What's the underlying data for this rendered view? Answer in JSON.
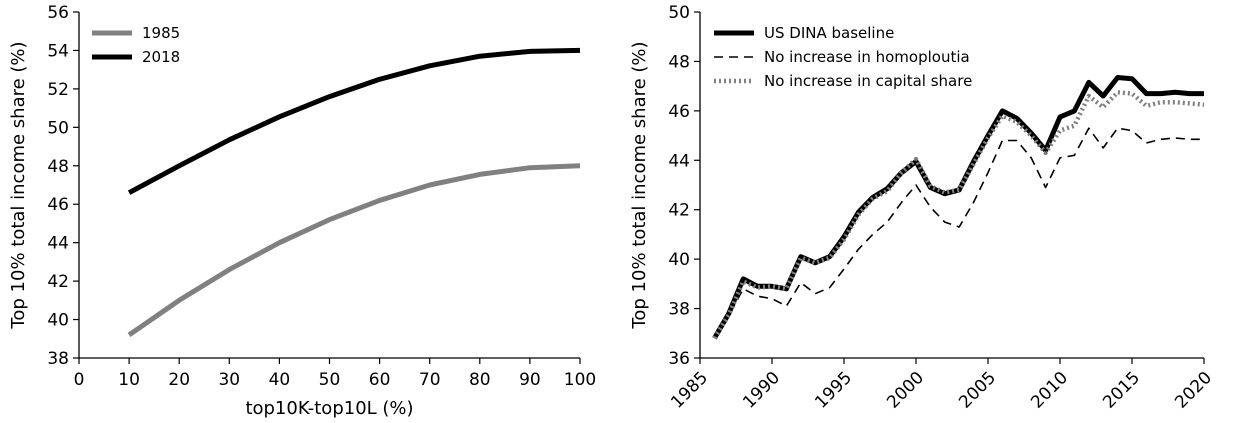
{
  "chart_data": [
    {
      "type": "line",
      "title": "",
      "xlabel": "top10K-top10L (%)",
      "ylabel": "Top 10% total income share (%)",
      "xlim": [
        0,
        100
      ],
      "ylim": [
        38,
        56
      ],
      "xticks": [
        "0",
        "10",
        "20",
        "30",
        "40",
        "50",
        "60",
        "70",
        "80",
        "90",
        "100"
      ],
      "yticks": [
        "38",
        "40",
        "42",
        "44",
        "46",
        "48",
        "50",
        "52",
        "54",
        "56"
      ],
      "legend_position": "top-left",
      "grid": false,
      "x": [
        10,
        20,
        30,
        40,
        50,
        60,
        70,
        80,
        90,
        100
      ],
      "series": [
        {
          "name": "1985",
          "color": "#808080",
          "style": "solid-thick",
          "values": [
            39.2,
            41.0,
            42.6,
            44.0,
            45.2,
            46.2,
            47.0,
            47.55,
            47.9,
            48.0
          ]
        },
        {
          "name": "2018",
          "color": "#000000",
          "style": "solid-thick",
          "values": [
            46.6,
            48.0,
            49.35,
            50.55,
            51.6,
            52.5,
            53.2,
            53.7,
            53.95,
            54.0
          ]
        }
      ]
    },
    {
      "type": "line",
      "title": "",
      "xlabel": "",
      "ylabel": "Top 10% total income share (%)",
      "xlim": [
        1985,
        2020
      ],
      "ylim": [
        36,
        50
      ],
      "xticks": [
        "1985",
        "1990",
        "1995",
        "2000",
        "2005",
        "2010",
        "2015",
        "2020"
      ],
      "yticks": [
        "36",
        "38",
        "40",
        "42",
        "44",
        "46",
        "48",
        "50"
      ],
      "legend_position": "top-left",
      "grid": false,
      "x": [
        1986,
        1987,
        1988,
        1989,
        1990,
        1991,
        1992,
        1993,
        1994,
        1995,
        1996,
        1997,
        1998,
        1999,
        2000,
        2001,
        2002,
        2003,
        2004,
        2005,
        2006,
        2007,
        2008,
        2009,
        2010,
        2011,
        2012,
        2013,
        2014,
        2015,
        2016,
        2017,
        2018,
        2019,
        2020
      ],
      "series": [
        {
          "name": "US DINA baseline",
          "color": "#000000",
          "style": "solid-thick",
          "values": [
            36.8,
            37.8,
            39.2,
            38.9,
            38.9,
            38.8,
            40.1,
            39.85,
            40.1,
            40.9,
            41.9,
            42.5,
            42.85,
            43.5,
            43.95,
            42.9,
            42.65,
            42.8,
            43.95,
            45.0,
            46.0,
            45.7,
            45.1,
            44.4,
            45.75,
            46.0,
            47.15,
            46.6,
            47.35,
            47.3,
            46.7,
            46.7,
            46.75,
            46.7,
            46.7
          ]
        },
        {
          "name": "No increase in homoploutia",
          "color": "#000000",
          "style": "dashed-thin",
          "values": [
            36.8,
            37.7,
            38.8,
            38.5,
            38.4,
            38.1,
            39.05,
            38.6,
            38.85,
            39.6,
            40.4,
            41.0,
            41.5,
            42.3,
            43.0,
            42.1,
            41.5,
            41.3,
            42.3,
            43.5,
            44.8,
            44.8,
            44.1,
            42.9,
            44.1,
            44.2,
            45.3,
            44.5,
            45.3,
            45.2,
            44.7,
            44.85,
            44.9,
            44.85,
            44.85
          ]
        },
        {
          "name": "No increase in capital share",
          "color": "#808080",
          "style": "dotted-thick",
          "values": [
            36.8,
            37.75,
            39.1,
            38.85,
            38.9,
            38.8,
            40.05,
            39.85,
            40.05,
            40.8,
            41.8,
            42.45,
            42.75,
            43.5,
            44.05,
            42.95,
            42.7,
            42.8,
            43.85,
            44.9,
            45.8,
            45.55,
            45.0,
            44.3,
            45.2,
            45.4,
            46.6,
            46.15,
            46.75,
            46.7,
            46.2,
            46.35,
            46.35,
            46.3,
            46.25
          ]
        }
      ]
    }
  ]
}
